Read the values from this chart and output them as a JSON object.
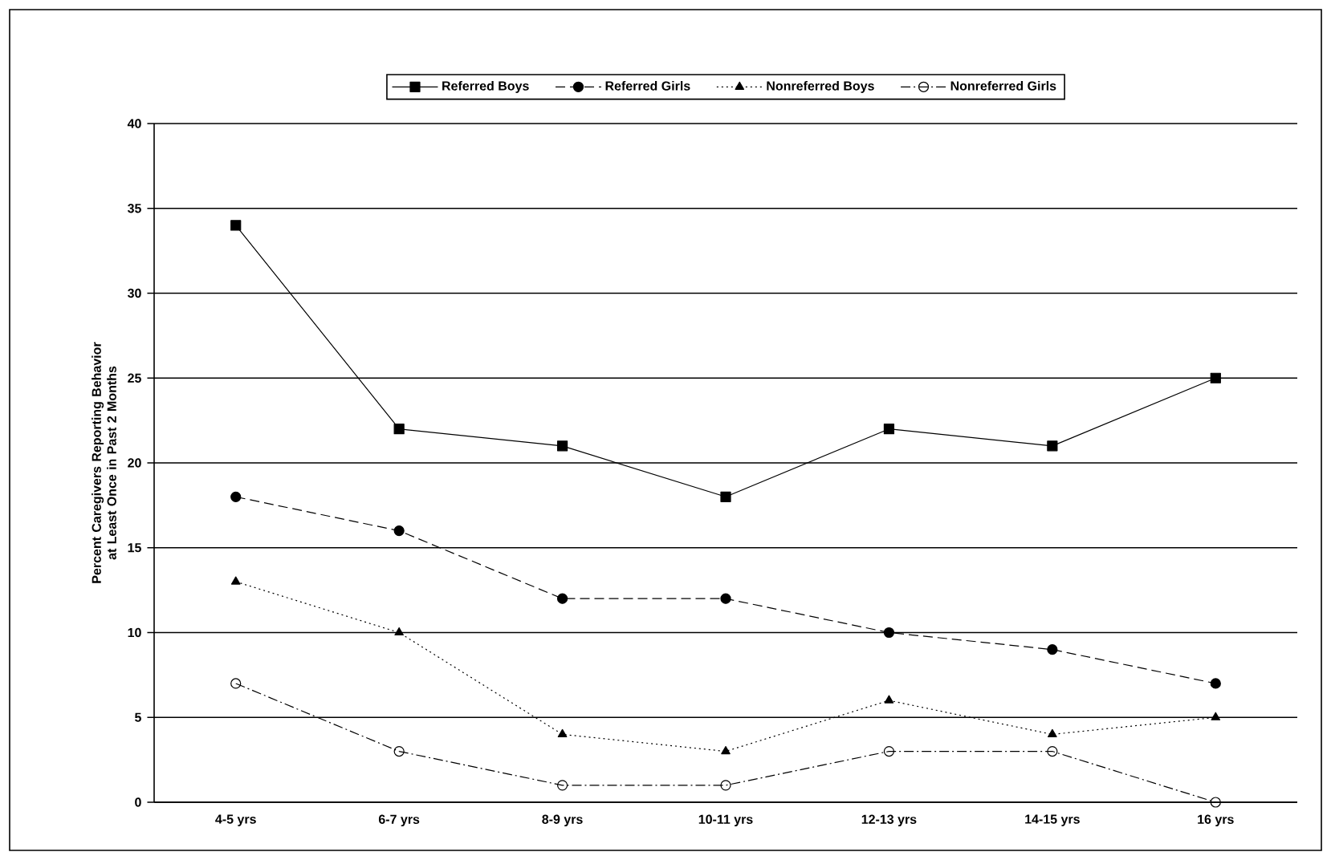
{
  "chart_data": {
    "type": "line",
    "ylabel": "Percent Caregivers Reporting Behavior at Least Once in Past 2 Months",
    "categories": [
      "4-5 yrs",
      "6-7 yrs",
      "8-9 yrs",
      "10-11 yrs",
      "12-13 yrs",
      "14-15 yrs",
      "16 yrs"
    ],
    "series": [
      {
        "name": "Referred Boys",
        "color": "#000000",
        "marker": "square",
        "line_style": "solid",
        "values": [
          34,
          22,
          21,
          18,
          22,
          21,
          25
        ]
      },
      {
        "name": "Referred Girls",
        "color": "#000000",
        "marker": "circle",
        "line_style": "dashed",
        "values": [
          18,
          16,
          12,
          12,
          10,
          9,
          7
        ]
      },
      {
        "name": "Nonreferred Boys",
        "color": "#000000",
        "marker": "triangle",
        "line_style": "dotted",
        "values": [
          13,
          10,
          4,
          3,
          6,
          4,
          5
        ]
      },
      {
        "name": "Nonreferred Girls",
        "color": "#000000",
        "marker": "open circle",
        "line_style": "dashdot",
        "values": [
          7,
          3,
          1,
          1,
          3,
          3,
          0
        ]
      }
    ],
    "ylim": [
      0,
      40
    ],
    "yticks": [
      0,
      5,
      10,
      15,
      20,
      25,
      30,
      35,
      40
    ],
    "grid": "y",
    "legend": "top"
  }
}
